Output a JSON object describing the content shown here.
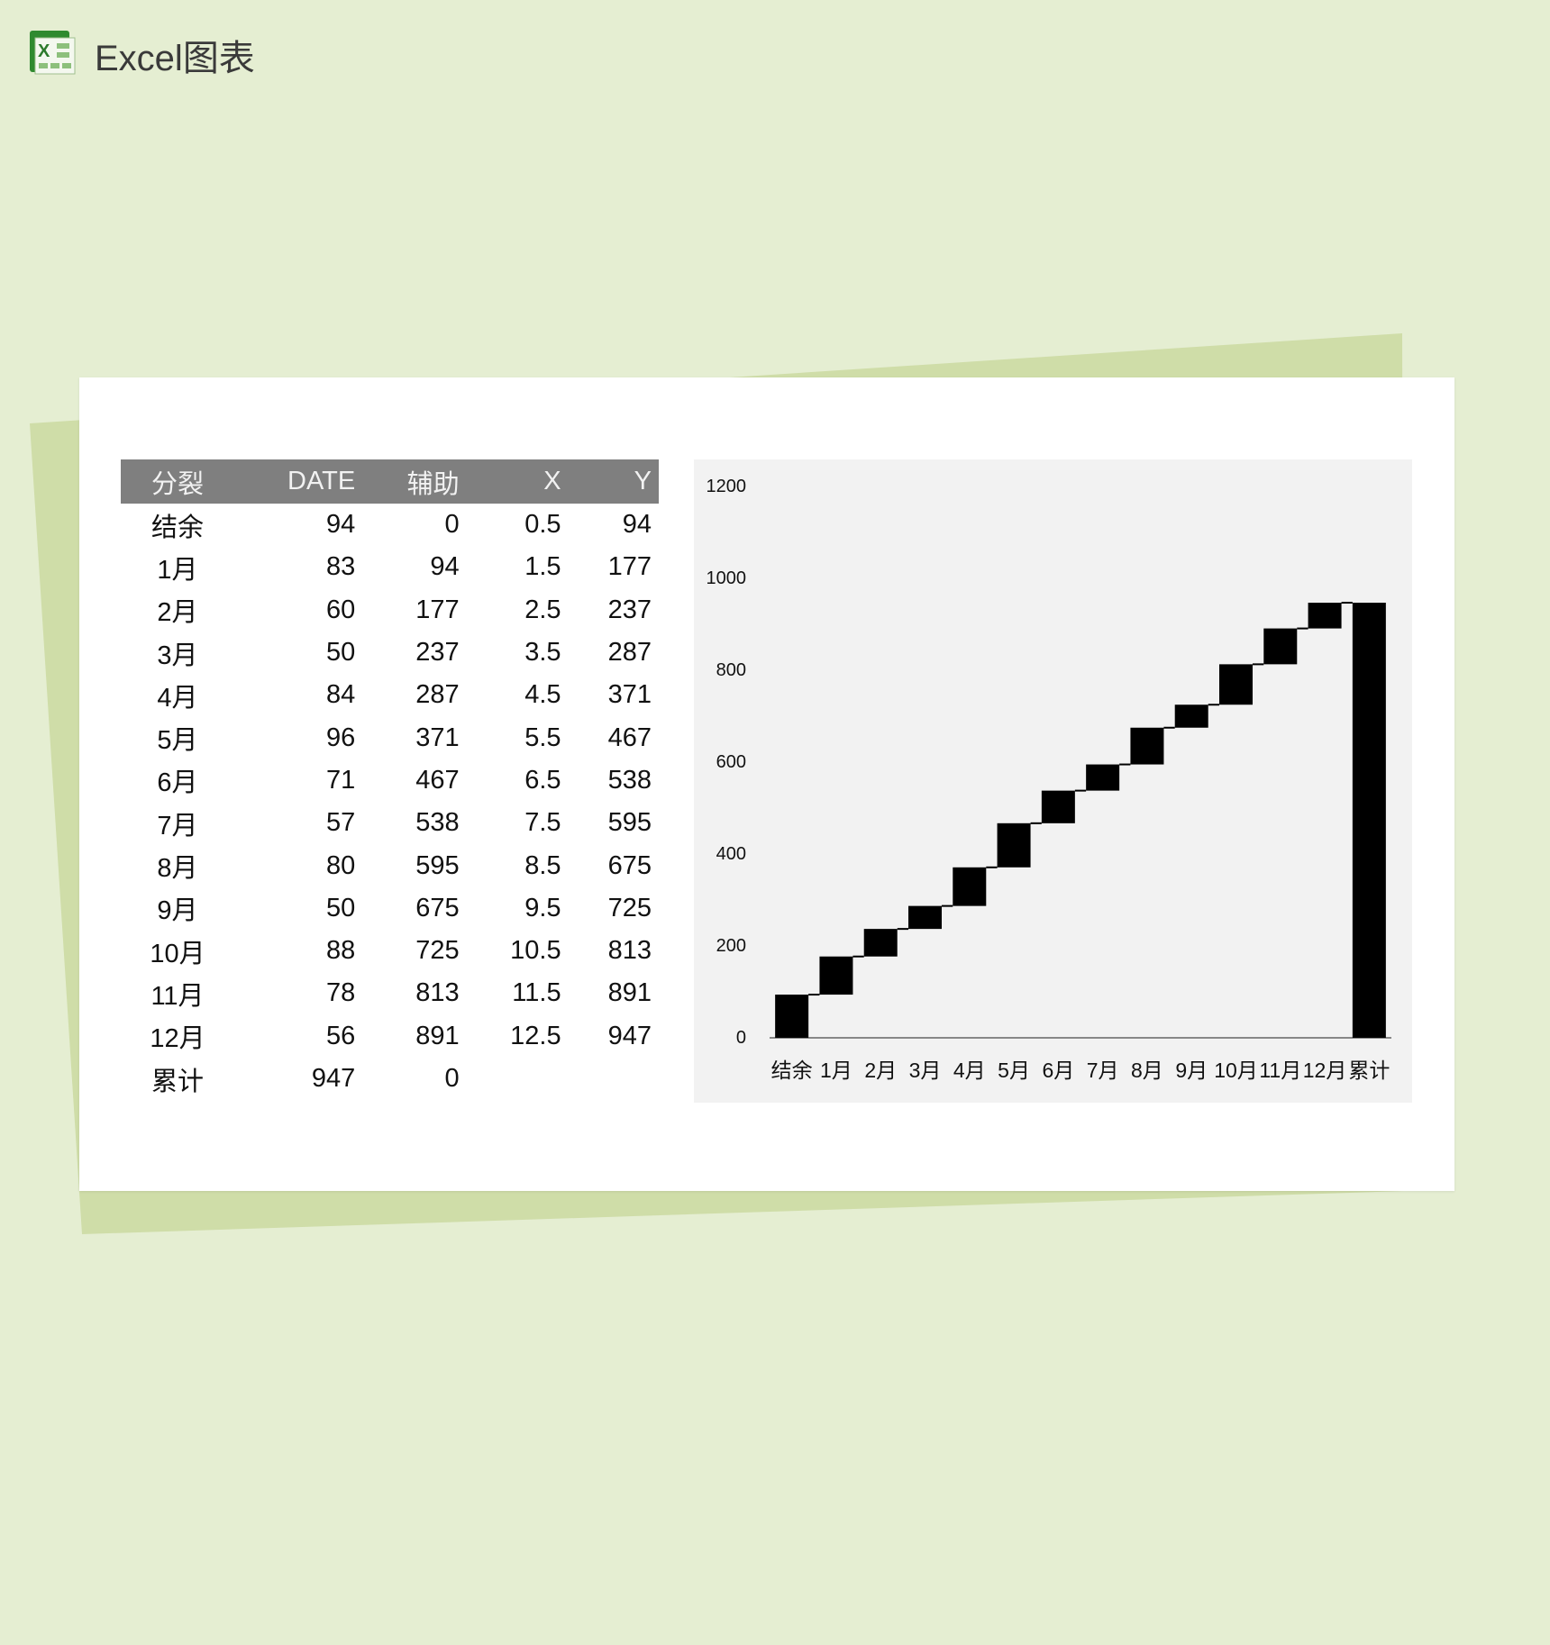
{
  "header": {
    "title": "Excel图表",
    "logo": "excel-logo-icon"
  },
  "table": {
    "columns": [
      "分裂",
      "DATE",
      "辅助",
      "X",
      "Y"
    ],
    "rows": [
      [
        "结余",
        "94",
        "0",
        "0.5",
        "94"
      ],
      [
        "1月",
        "83",
        "94",
        "1.5",
        "177"
      ],
      [
        "2月",
        "60",
        "177",
        "2.5",
        "237"
      ],
      [
        "3月",
        "50",
        "237",
        "3.5",
        "287"
      ],
      [
        "4月",
        "84",
        "287",
        "4.5",
        "371"
      ],
      [
        "5月",
        "96",
        "371",
        "5.5",
        "467"
      ],
      [
        "6月",
        "71",
        "467",
        "6.5",
        "538"
      ],
      [
        "7月",
        "57",
        "538",
        "7.5",
        "595"
      ],
      [
        "8月",
        "80",
        "595",
        "8.5",
        "675"
      ],
      [
        "9月",
        "50",
        "675",
        "9.5",
        "725"
      ],
      [
        "10月",
        "88",
        "725",
        "10.5",
        "813"
      ],
      [
        "11月",
        "78",
        "813",
        "11.5",
        "891"
      ],
      [
        "12月",
        "56",
        "891",
        "12.5",
        "947"
      ],
      [
        "累计",
        "947",
        "0",
        "",
        ""
      ]
    ]
  },
  "chart_data": {
    "type": "bar",
    "subtype": "waterfall",
    "categories": [
      "结余",
      "1月",
      "2月",
      "3月",
      "4月",
      "5月",
      "6月",
      "7月",
      "8月",
      "9月",
      "10月",
      "11月",
      "12月",
      "累计"
    ],
    "base": [
      0,
      94,
      177,
      237,
      287,
      371,
      467,
      538,
      595,
      675,
      725,
      813,
      891,
      0
    ],
    "values": [
      94,
      83,
      60,
      50,
      84,
      96,
      71,
      57,
      80,
      50,
      88,
      78,
      56,
      947
    ],
    "yticks": [
      "0",
      "200",
      "400",
      "600",
      "800",
      "1000",
      "1200"
    ],
    "ylim": [
      0,
      1200
    ],
    "grid": false,
    "bar_color": "#000000",
    "background": "#f2f2f2"
  }
}
